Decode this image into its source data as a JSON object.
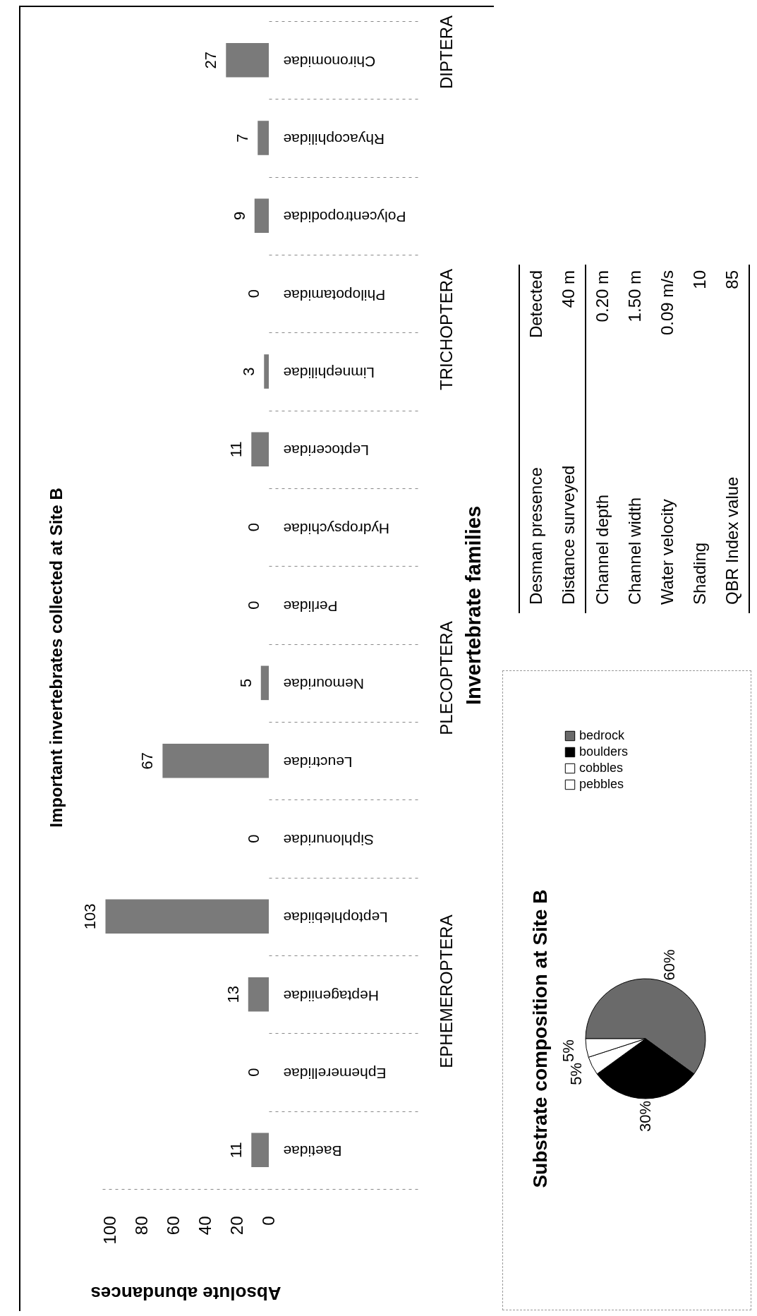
{
  "chart_data": [
    {
      "type": "bar",
      "orientation": "horizontal",
      "title": "Important invertebrates collected at Site B",
      "xlabel": "Absolute abundances",
      "ylabel": "Invertebrate families",
      "categories": [
        "Chironomidae",
        "Rhyacophilidae",
        "Polycentropodidae",
        "Philopotamidae",
        "Limnephilidae",
        "Leptoceridae",
        "Hydropsychidae",
        "Perlidae",
        "Nemouridae",
        "Leuctridae",
        "Siphlonuridae",
        "Leptophlebiidae",
        "Heptageniidae",
        "Ephemerellidae",
        "Baetidae"
      ],
      "values": [
        27,
        7,
        9,
        0,
        3,
        11,
        0,
        0,
        5,
        67,
        0,
        103,
        13,
        0,
        11
      ],
      "color": "#7a7a7a",
      "xlim": [
        105,
        0
      ],
      "xticks": [
        100,
        80,
        60,
        40,
        20,
        0
      ],
      "data_labels": true,
      "annotations": [
        "DIPTERA",
        "TRICHOPTERA",
        "PLECOPTERA",
        "EPHEMEROPTERA"
      ]
    },
    {
      "type": "pie",
      "title": "Substrate composition at Site B",
      "categories": [
        "bedrock",
        "boulders",
        "cobbles",
        "pebbles"
      ],
      "values": [
        60,
        30,
        5,
        5
      ],
      "colors": [
        "#6a6a6a",
        "#000000",
        "#ffffff",
        "#ffffff"
      ],
      "value_labels": [
        "60%",
        "30%",
        "5%",
        "5%"
      ],
      "legend": "top"
    },
    {
      "type": "other",
      "annotations": [
        "Desman presence",
        "Detected",
        "Distance surveyed",
        "40 m",
        "Channel depth",
        "0.20 m",
        "Channel width",
        "1.50 m",
        "Water velocity",
        "0.09 m/s",
        "Shading",
        "10",
        "QBR Index value",
        "85"
      ]
    }
  ]
}
